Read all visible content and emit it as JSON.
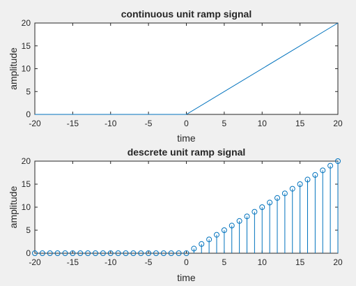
{
  "chart_data": [
    {
      "type": "line",
      "title": "continuous unit ramp signal",
      "xlabel": "time",
      "ylabel": "amplitude",
      "xlim": [
        -20,
        20
      ],
      "ylim": [
        0,
        20
      ],
      "xticks": [
        -20,
        -15,
        -10,
        -5,
        0,
        5,
        10,
        15,
        20
      ],
      "yticks": [
        0,
        5,
        10,
        15,
        20
      ],
      "grid": false,
      "color": "#0072BD",
      "x": [
        -20,
        0,
        20
      ],
      "y": [
        0,
        0,
        20
      ]
    },
    {
      "type": "stem",
      "title": "descrete unit ramp signal",
      "xlabel": "time",
      "ylabel": "amplitude",
      "xlim": [
        -20,
        20
      ],
      "ylim": [
        0,
        20
      ],
      "xticks": [
        -20,
        -15,
        -10,
        -5,
        0,
        5,
        10,
        15,
        20
      ],
      "yticks": [
        0,
        5,
        10,
        15,
        20
      ],
      "grid": false,
      "color": "#0072BD",
      "x": [
        -20,
        -19,
        -18,
        -17,
        -16,
        -15,
        -14,
        -13,
        -12,
        -11,
        -10,
        -9,
        -8,
        -7,
        -6,
        -5,
        -4,
        -3,
        -2,
        -1,
        0,
        1,
        2,
        3,
        4,
        5,
        6,
        7,
        8,
        9,
        10,
        11,
        12,
        13,
        14,
        15,
        16,
        17,
        18,
        19,
        20
      ],
      "y": [
        0,
        0,
        0,
        0,
        0,
        0,
        0,
        0,
        0,
        0,
        0,
        0,
        0,
        0,
        0,
        0,
        0,
        0,
        0,
        0,
        0,
        1,
        2,
        3,
        4,
        5,
        6,
        7,
        8,
        9,
        10,
        11,
        12,
        13,
        14,
        15,
        16,
        17,
        18,
        19,
        20
      ]
    }
  ]
}
